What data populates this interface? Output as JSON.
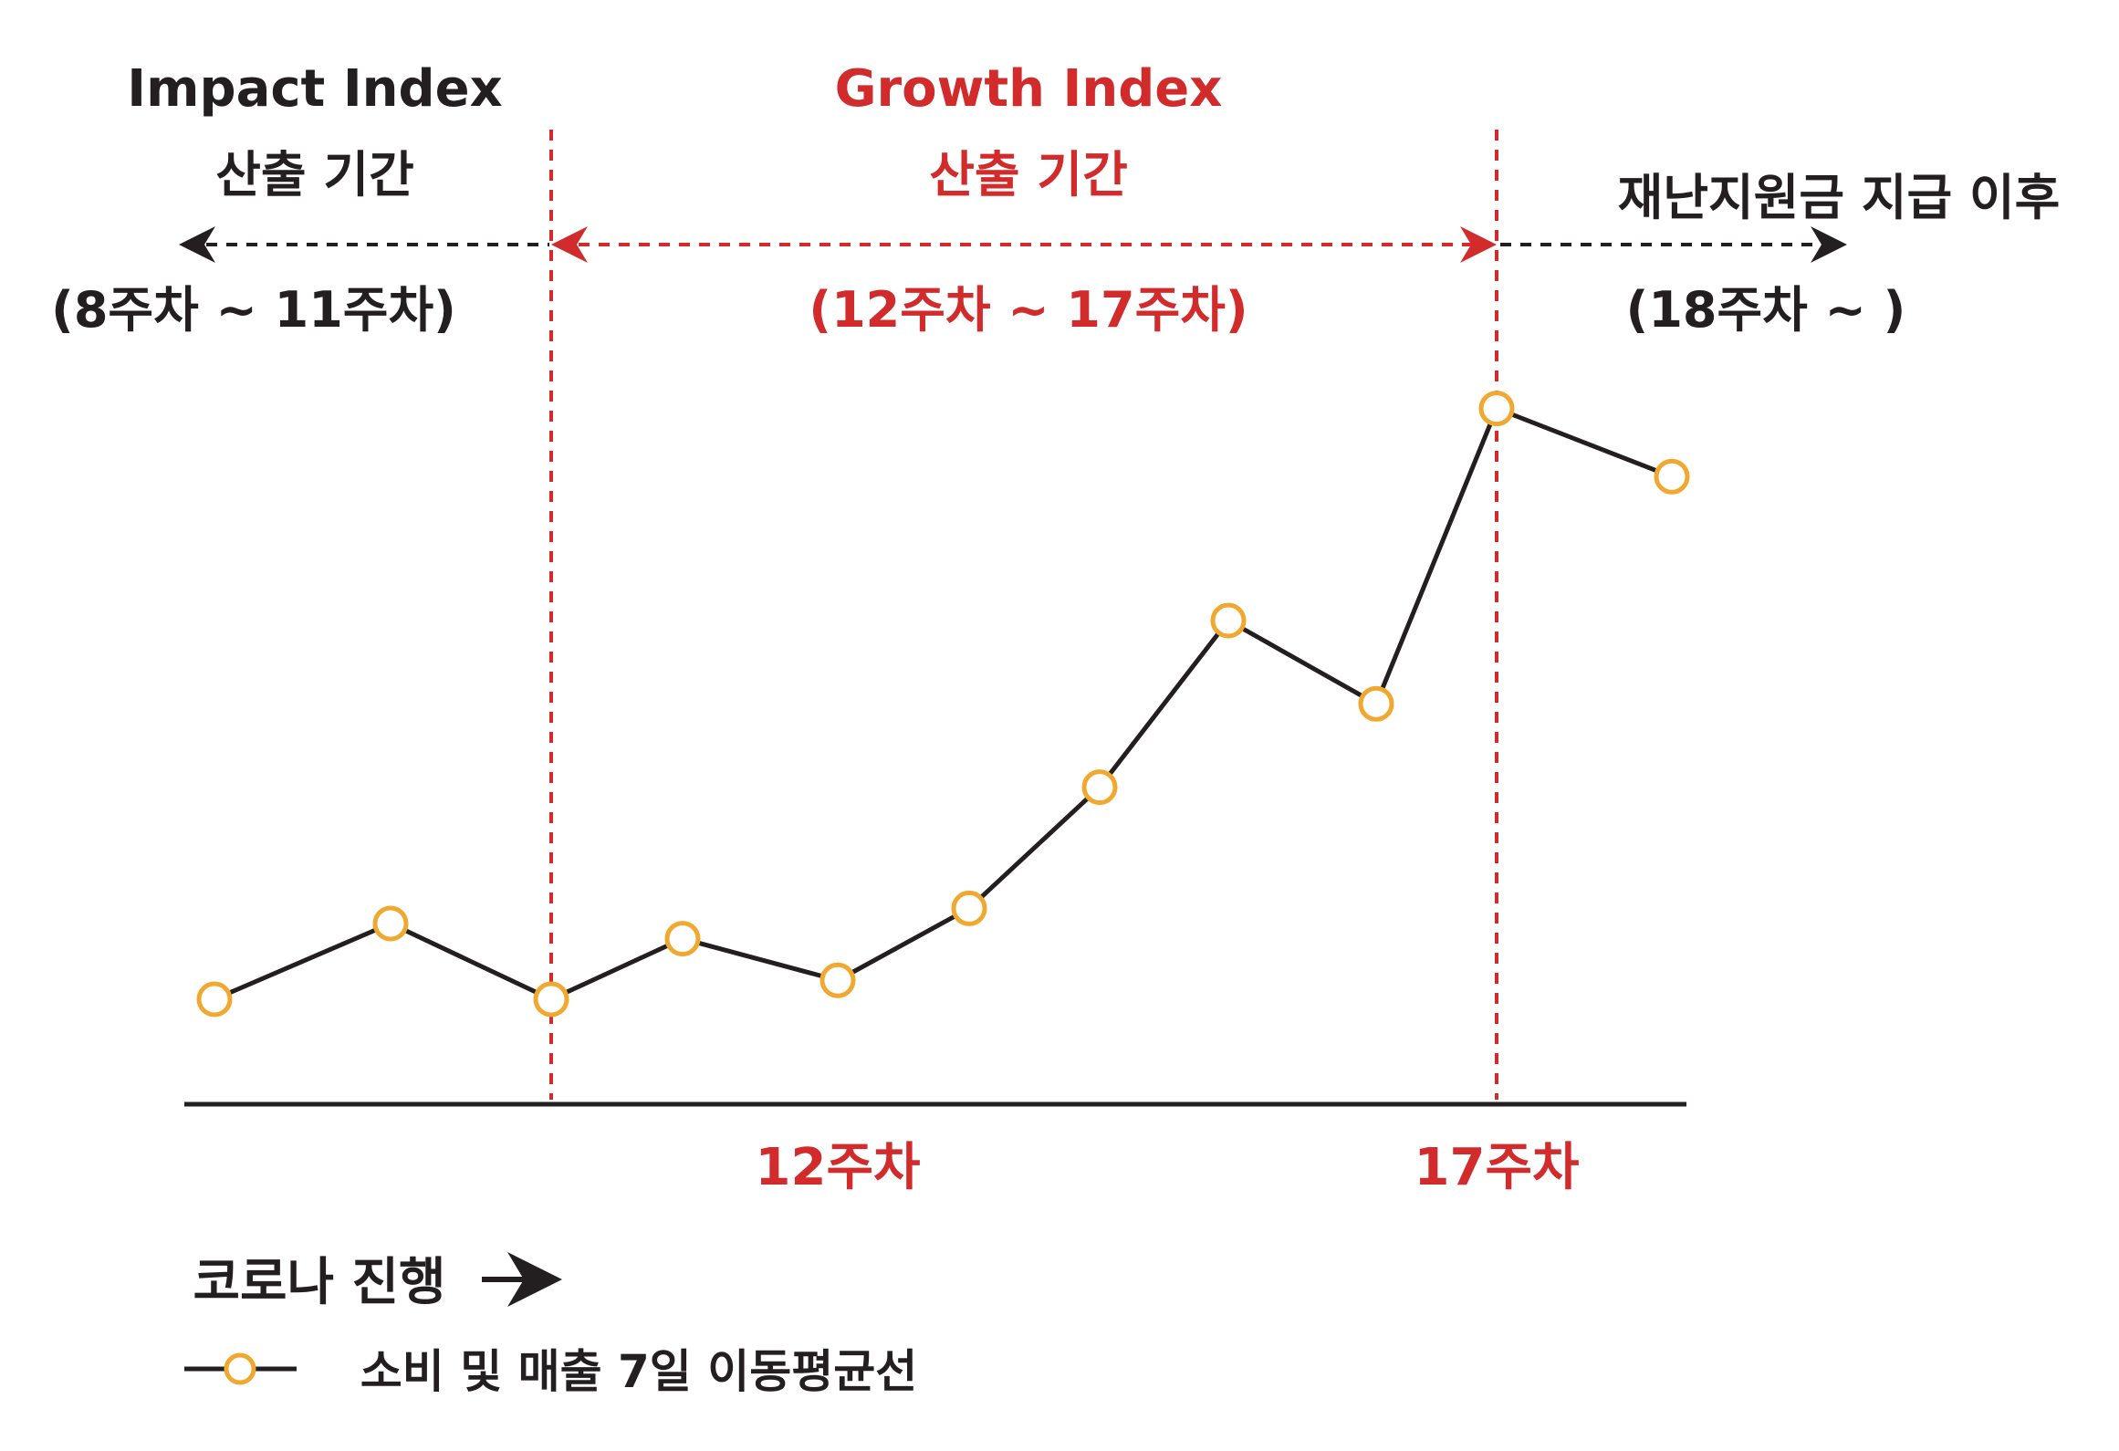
{
  "colors": {
    "dark": "#231f20",
    "red": "#d12b2b",
    "marker": "#f0a830"
  },
  "annotations": {
    "impact_title": "Impact Index",
    "impact_sub": "산출 기간",
    "impact_range": "(8주차 ~ 11주차)",
    "growth_title": "Growth Index",
    "growth_sub": "산출 기간",
    "growth_range": "(12주차 ~ 17주차)",
    "after_title": "재난지원금 지급 이후",
    "after_range": "(18주차 ~ )"
  },
  "x_axis_text": "코로나 진행",
  "arrow_icon": "right-arrow-icon",
  "chart_data": {
    "type": "line",
    "x": [
      8,
      9,
      10,
      11,
      12,
      13,
      14,
      15,
      16,
      17,
      18
    ],
    "tick_labels": [
      {
        "x": 12,
        "label": "12주차"
      },
      {
        "x": 17,
        "label": "17주차"
      }
    ],
    "series": [
      {
        "name": "소비 및 매출 7일 이동평균선",
        "color": "#231f20",
        "marker_color": "#f0a830",
        "points": [
          {
            "x": 8,
            "y": 1.0
          },
          {
            "x": 9,
            "y": 2.0
          },
          {
            "x": 10,
            "y": 1.0
          },
          {
            "x": 11,
            "y": 1.8
          },
          {
            "x": 12,
            "y": 1.25
          },
          {
            "x": 13,
            "y": 2.2
          },
          {
            "x": 14,
            "y": 3.8
          },
          {
            "x": 15,
            "y": 6.0
          },
          {
            "x": 16,
            "y": 4.9
          },
          {
            "x": 17,
            "y": 8.8
          },
          {
            "x": 18,
            "y": 7.9
          }
        ]
      }
    ],
    "legend": {
      "position": "bottom-left"
    },
    "grid": false
  }
}
